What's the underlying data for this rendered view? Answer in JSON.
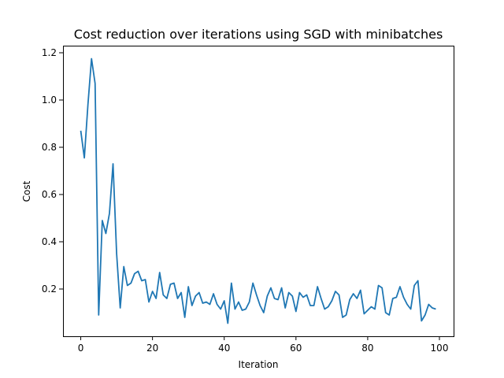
{
  "chart_data": {
    "type": "line",
    "title": "Cost reduction over iterations using SGD with minibatches",
    "xlabel": "Iteration",
    "ylabel": "Cost",
    "xlim": [
      -4.95,
      103.95
    ],
    "ylim": [
      0.0,
      1.23
    ],
    "xticks": [
      0,
      20,
      40,
      60,
      80,
      100
    ],
    "xtick_labels": [
      "0",
      "20",
      "40",
      "60",
      "80",
      "100"
    ],
    "yticks": [
      0.2,
      0.4,
      0.6,
      0.8,
      1.0,
      1.2
    ],
    "ytick_labels": [
      "0.2",
      "0.4",
      "0.6",
      "0.8",
      "1.0",
      "1.2"
    ],
    "grid": false,
    "series": [
      {
        "color": "#1f77b4",
        "x": [
          0,
          1,
          2,
          3,
          4,
          5,
          6,
          7,
          8,
          9,
          10,
          11,
          12,
          13,
          14,
          15,
          16,
          17,
          18,
          19,
          20,
          21,
          22,
          23,
          24,
          25,
          26,
          27,
          28,
          29,
          30,
          31,
          32,
          33,
          34,
          35,
          36,
          37,
          38,
          39,
          40,
          41,
          42,
          43,
          44,
          45,
          46,
          47,
          48,
          49,
          50,
          51,
          52,
          53,
          54,
          55,
          56,
          57,
          58,
          59,
          60,
          61,
          62,
          63,
          64,
          65,
          66,
          67,
          68,
          69,
          70,
          71,
          72,
          73,
          74,
          75,
          76,
          77,
          78,
          79,
          80,
          81,
          82,
          83,
          84,
          85,
          86,
          87,
          88,
          89,
          90,
          91,
          92,
          93,
          94,
          95,
          96,
          97,
          98,
          99
        ],
        "values": [
          0.87,
          0.755,
          0.98,
          1.175,
          1.07,
          0.09,
          0.49,
          0.435,
          0.52,
          0.73,
          0.35,
          0.12,
          0.295,
          0.215,
          0.225,
          0.265,
          0.275,
          0.235,
          0.24,
          0.145,
          0.19,
          0.16,
          0.27,
          0.175,
          0.16,
          0.22,
          0.225,
          0.16,
          0.185,
          0.08,
          0.21,
          0.13,
          0.17,
          0.185,
          0.14,
          0.145,
          0.135,
          0.18,
          0.135,
          0.115,
          0.15,
          0.055,
          0.225,
          0.115,
          0.145,
          0.11,
          0.115,
          0.145,
          0.225,
          0.175,
          0.13,
          0.1,
          0.17,
          0.205,
          0.16,
          0.155,
          0.205,
          0.12,
          0.185,
          0.17,
          0.105,
          0.185,
          0.165,
          0.175,
          0.13,
          0.13,
          0.21,
          0.16,
          0.115,
          0.125,
          0.15,
          0.19,
          0.175,
          0.08,
          0.09,
          0.155,
          0.18,
          0.16,
          0.195,
          0.095,
          0.11,
          0.125,
          0.115,
          0.215,
          0.205,
          0.1,
          0.09,
          0.16,
          0.165,
          0.21,
          0.165,
          0.135,
          0.115,
          0.215,
          0.235,
          0.065,
          0.09,
          0.135,
          0.12,
          0.115
        ]
      }
    ]
  }
}
